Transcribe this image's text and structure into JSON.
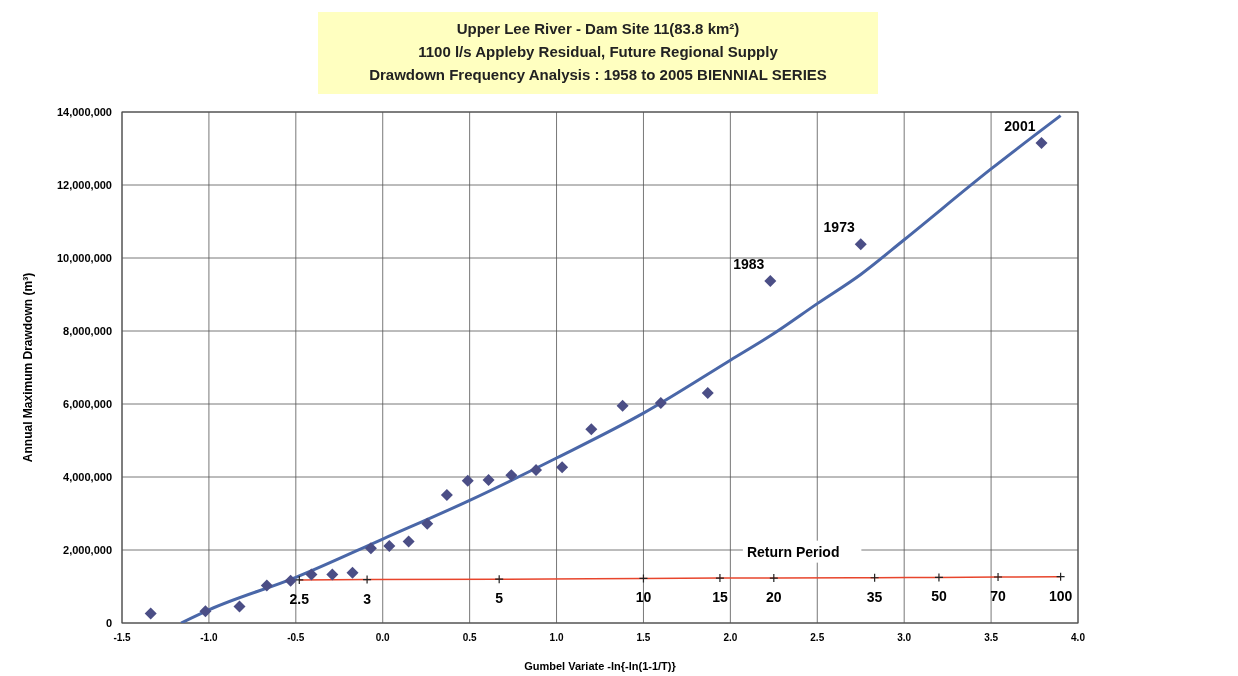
{
  "chart_data": {
    "type": "scatter",
    "title": "Upper Lee River - Dam Site 11(83.8 km²)\n1100 l/s Appleby Residual, Future Regional Supply\nDrawdown Frequency Analysis : 1958 to 2005 BIENNIAL SERIES",
    "xlabel": "Gumbel Variate -ln{-ln(1-1/T)}",
    "ylabel": "Annual Maximum Drawdown (m³)",
    "series": [
      {
        "type": "scatter",
        "color": "#4b4e86",
        "marker": "diamond",
        "x": [
          -1.335,
          -1.02,
          -0.824,
          -0.667,
          -0.53,
          -0.41,
          -0.29,
          -0.174,
          -0.068,
          0.038,
          0.149,
          0.256,
          0.369,
          0.489,
          0.609,
          0.74,
          0.882,
          1.032,
          1.2,
          1.38,
          1.6,
          1.87,
          2.23,
          2.75,
          3.79
        ],
        "values": [
          260000,
          320000,
          450000,
          1030000,
          1160000,
          1330000,
          1330000,
          1380000,
          2050000,
          2110000,
          2230000,
          2720000,
          3510000,
          3900000,
          3920000,
          4050000,
          4190000,
          4270000,
          5310000,
          5950000,
          6030000,
          6300000,
          9370000,
          10380000,
          13150000
        ]
      },
      {
        "type": "line",
        "color": "#4a67a8",
        "line_style": "solid",
        "marker": "none",
        "x": [
          -1.16,
          -1.0,
          -0.5,
          0.0,
          0.5,
          1.0,
          1.5,
          2.0,
          2.25,
          2.5,
          2.75,
          3.0,
          3.5,
          3.9
        ],
        "values": [
          0,
          360000,
          1250000,
          2300000,
          3360000,
          4520000,
          5750000,
          7200000,
          7930000,
          8750000,
          9550000,
          10500000,
          12440000,
          13900000
        ]
      },
      {
        "type": "line",
        "color": "#e8452c",
        "line_style": "solid",
        "marker": "cross",
        "x": [
          -0.48,
          -0.09,
          0.67,
          1.5,
          1.94,
          2.25,
          2.83,
          3.2,
          3.54,
          3.9
        ],
        "values": [
          1180000,
          1190000,
          1200000,
          1220000,
          1230000,
          1230000,
          1240000,
          1250000,
          1260000,
          1270000
        ]
      }
    ],
    "annotations": [
      {
        "text": "1983",
        "x": 2.23,
        "y": 9370000
      },
      {
        "text": "1973",
        "x": 2.75,
        "y": 10380000
      },
      {
        "text": "2001",
        "x": 3.79,
        "y": 13150000
      },
      "Return Period",
      {
        "text": "2.5",
        "x": -0.48,
        "y": 1180000
      },
      {
        "text": "3",
        "x": -0.09,
        "y": 1190000
      },
      {
        "text": "5",
        "x": 0.67,
        "y": 1200000
      },
      {
        "text": "10",
        "x": 1.5,
        "y": 1220000
      },
      {
        "text": "15",
        "x": 1.94,
        "y": 1230000
      },
      {
        "text": "20",
        "x": 2.25,
        "y": 1230000
      },
      {
        "text": "35",
        "x": 2.83,
        "y": 1240000
      },
      {
        "text": "50",
        "x": 3.2,
        "y": 1250000
      },
      {
        "text": "70",
        "x": 3.54,
        "y": 1260000
      },
      {
        "text": "100",
        "x": 3.9,
        "y": 1270000
      }
    ],
    "xlim": [
      -1.5,
      4.0
    ],
    "xticks": [
      -1.5,
      {
        "value": -1.0,
        "label": "-1.0"
      },
      -0.5,
      {
        "value": 0,
        "label": "0.0"
      },
      0.5,
      {
        "value": 1.0,
        "label": "1.0"
      },
      1.5,
      {
        "value": 2.0,
        "label": "2.0"
      },
      2.5,
      {
        "value": 3.0,
        "label": "3.0"
      },
      3.5,
      {
        "value": 4.0,
        "label": "4.0"
      }
    ],
    "ylim": [
      0,
      14000000
    ],
    "yticks": [
      0,
      {
        "value": 2000000,
        "label": "2,000,000"
      },
      {
        "value": 4000000,
        "label": "4,000,000"
      },
      {
        "value": 6000000,
        "label": "6,000,000"
      },
      {
        "value": 8000000,
        "label": "8,000,000"
      },
      {
        "value": 10000000,
        "label": "10,000,000"
      },
      {
        "value": 12000000,
        "label": "12,000,000"
      },
      {
        "value": 14000000,
        "label": "14,000,000"
      }
    ],
    "grid": true
  }
}
